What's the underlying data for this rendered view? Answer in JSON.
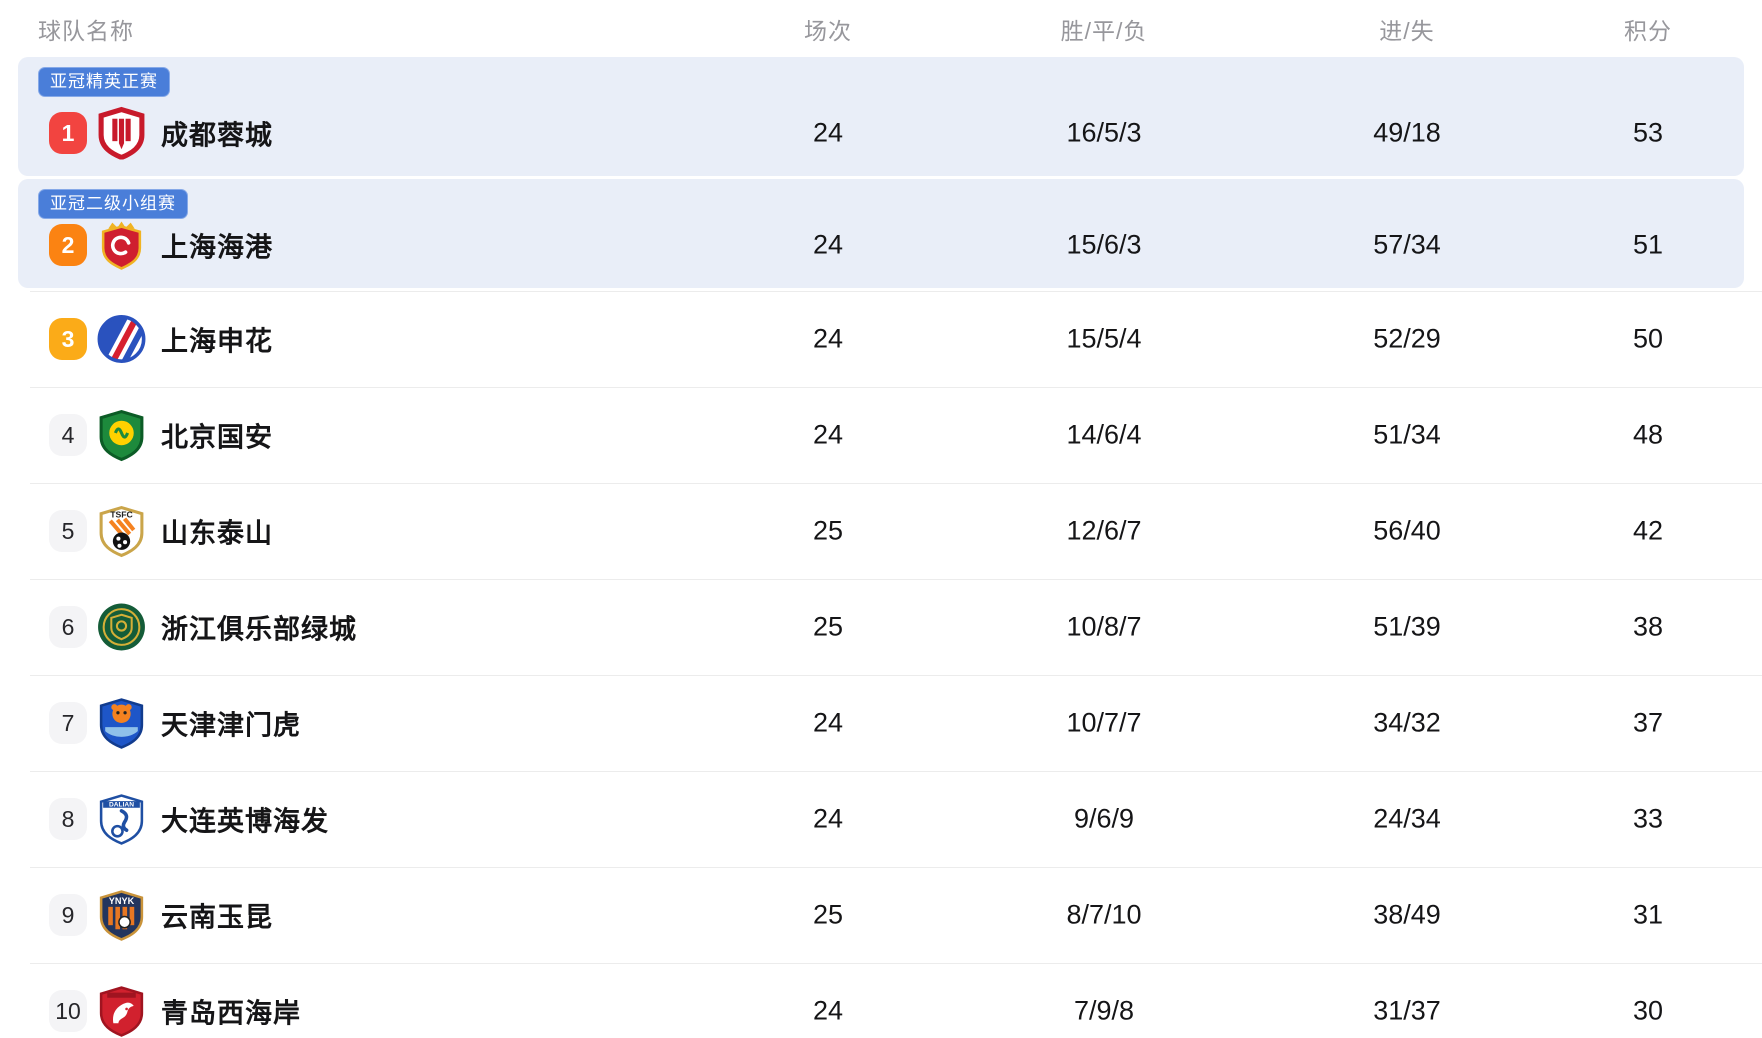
{
  "header": {
    "team": "球队名称",
    "played": "场次",
    "wdl": "胜/平/负",
    "goals": "进/失",
    "points": "积分"
  },
  "colors": {
    "header_text": "#97979c",
    "highlight_row_bg": "#e9eef8",
    "competition_badge_bg": "#4a7ed9",
    "divider": "#ececec",
    "rank1_bg": "#f24440",
    "rank2_bg": "#fb8312",
    "rank3_bg": "#fbab18",
    "rank_neutral_bg": "#f4f4f6",
    "text_dark": "#151517"
  },
  "table": {
    "rows": [
      {
        "rank": "1",
        "rank_style": "red",
        "competition_badge": "亚冠精英正赛",
        "highlighted": true,
        "team": "成都蓉城",
        "played": "24",
        "wdl": "16/5/3",
        "goals": "49/18",
        "points": "53",
        "logo": {
          "kind": "chengdu",
          "primary": "#c81a2b",
          "secondary": "#ffffff"
        }
      },
      {
        "rank": "2",
        "rank_style": "orange",
        "competition_badge": "亚冠二级小组赛",
        "highlighted": true,
        "team": "上海海港",
        "played": "24",
        "wdl": "15/6/3",
        "goals": "57/34",
        "points": "51",
        "logo": {
          "kind": "port",
          "primary": "#cf1f2f",
          "secondary": "#f0b323"
        }
      },
      {
        "rank": "3",
        "rank_style": "amber",
        "highlighted": false,
        "team": "上海申花",
        "played": "24",
        "wdl": "15/5/4",
        "goals": "52/29",
        "points": "50",
        "logo": {
          "kind": "shenhua",
          "primary": "#2a52be",
          "secondary": "#d6202f"
        }
      },
      {
        "rank": "4",
        "rank_style": "neutral",
        "highlighted": false,
        "team": "北京国安",
        "played": "24",
        "wdl": "14/6/4",
        "goals": "51/34",
        "points": "48",
        "logo": {
          "kind": "guoan",
          "primary": "#1d8a3c",
          "secondary": "#ffd100"
        }
      },
      {
        "rank": "5",
        "rank_style": "neutral",
        "highlighted": false,
        "team": "山东泰山",
        "played": "25",
        "wdl": "12/6/7",
        "goals": "56/40",
        "points": "42",
        "logo": {
          "kind": "taishan",
          "primary": "#f58220",
          "secondary": "#caa54a",
          "text": "TSFC"
        }
      },
      {
        "rank": "6",
        "rank_style": "neutral",
        "highlighted": false,
        "team": "浙江俱乐部绿城",
        "played": "25",
        "wdl": "10/8/7",
        "goals": "51/39",
        "points": "38",
        "logo": {
          "kind": "lvcheng",
          "primary": "#145c38",
          "secondary": "#d4af37"
        }
      },
      {
        "rank": "7",
        "rank_style": "neutral",
        "highlighted": false,
        "team": "天津津门虎",
        "played": "24",
        "wdl": "10/7/7",
        "goals": "34/32",
        "points": "37",
        "logo": {
          "kind": "jinmenhu",
          "primary": "#1e56c8",
          "secondary": "#f58220"
        }
      },
      {
        "rank": "8",
        "rank_style": "neutral",
        "highlighted": false,
        "team": "大连英博海发",
        "played": "24",
        "wdl": "9/6/9",
        "goals": "24/34",
        "points": "33",
        "logo": {
          "kind": "dalian",
          "primary": "#1f4fa3",
          "secondary": "#ffffff",
          "text": "DALIAN"
        }
      },
      {
        "rank": "9",
        "rank_style": "neutral",
        "highlighted": false,
        "team": "云南玉昆",
        "played": "25",
        "wdl": "8/7/10",
        "goals": "38/49",
        "points": "31",
        "logo": {
          "kind": "yunnan",
          "primary": "#23355e",
          "secondary": "#e87722",
          "text": "YNYK"
        }
      },
      {
        "rank": "10",
        "rank_style": "neutral",
        "highlighted": false,
        "team": "青岛西海岸",
        "played": "24",
        "wdl": "7/9/8",
        "goals": "31/37",
        "points": "30",
        "logo": {
          "kind": "qingdao",
          "primary": "#d1212e",
          "secondary": "#ffffff"
        }
      }
    ]
  }
}
